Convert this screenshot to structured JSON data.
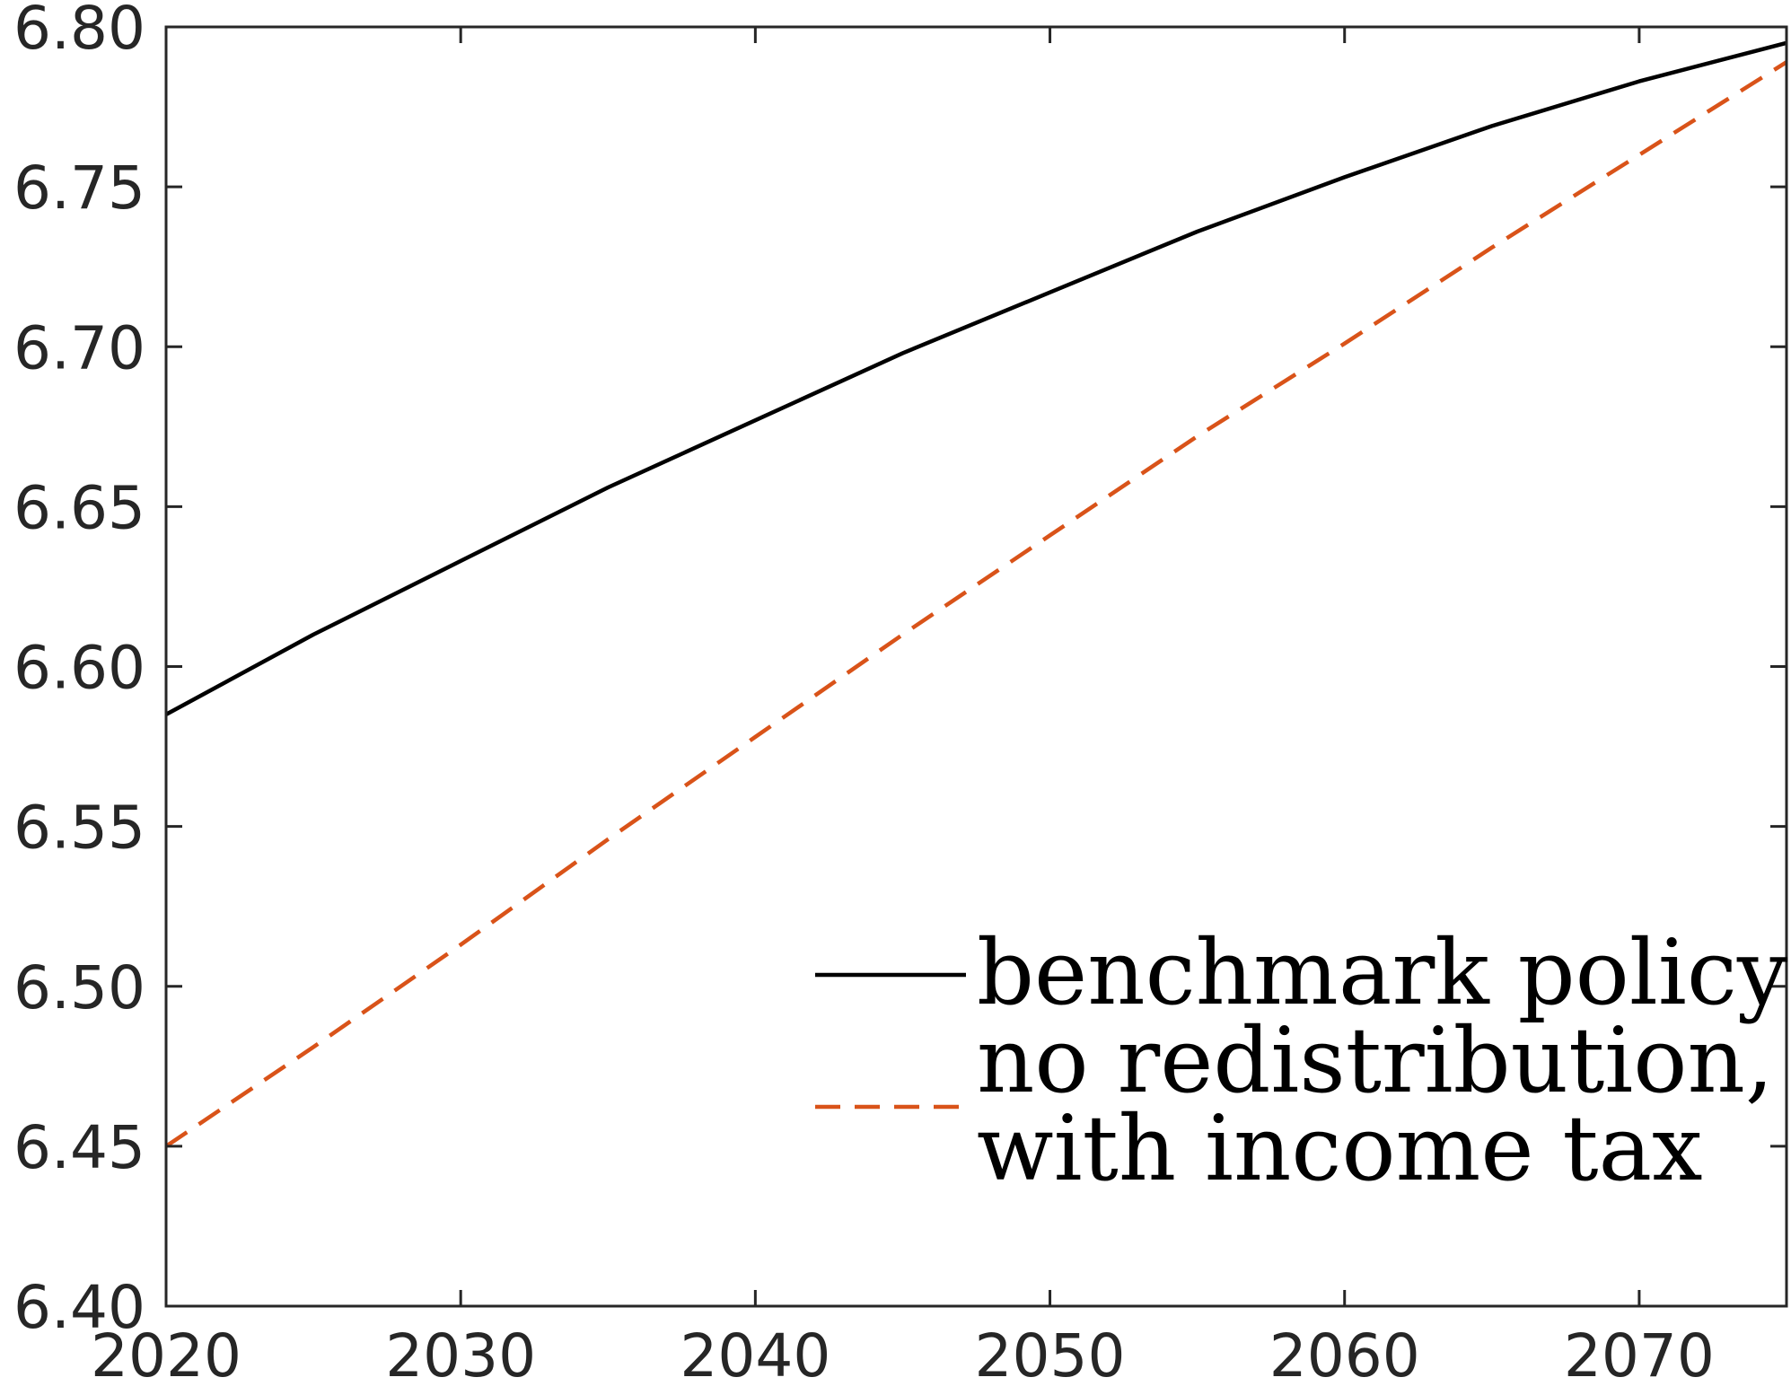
{
  "chart_data": {
    "type": "line",
    "title": "",
    "xlabel": "",
    "ylabel": "",
    "xlim": [
      2020,
      2075
    ],
    "ylim": [
      6.4,
      6.8
    ],
    "x_ticks": [
      2020,
      2030,
      2040,
      2050,
      2060,
      2070
    ],
    "x_tick_labels": [
      "2020",
      "2030",
      "2040",
      "2050",
      "2060",
      "2070"
    ],
    "y_ticks": [
      6.4,
      6.45,
      6.5,
      6.55,
      6.6,
      6.65,
      6.7,
      6.75,
      6.8
    ],
    "y_tick_labels": [
      "6.40",
      "6.45",
      "6.50",
      "6.55",
      "6.60",
      "6.65",
      "6.70",
      "6.75",
      "6.80"
    ],
    "grid": false,
    "legend_position": "bottom-right",
    "series": [
      {
        "name": "benchmark policy",
        "legend_lines": [
          "benchmark policy"
        ],
        "color": "#000000",
        "dash": "solid",
        "x": [
          2020,
          2025,
          2030,
          2035,
          2040,
          2045,
          2050,
          2055,
          2060,
          2065,
          2070,
          2075
        ],
        "y": [
          6.585,
          6.61,
          6.633,
          6.656,
          6.677,
          6.698,
          6.717,
          6.736,
          6.753,
          6.769,
          6.783,
          6.795
        ]
      },
      {
        "name": "no redistribution, with income tax",
        "legend_lines": [
          "no redistribution,",
          "with income tax"
        ],
        "color": "#D95319",
        "dash": "dashed",
        "x": [
          2020,
          2025,
          2030,
          2035,
          2040,
          2045,
          2050,
          2055,
          2060,
          2065,
          2070,
          2075
        ],
        "y": [
          6.45,
          6.481,
          6.513,
          6.546,
          6.578,
          6.61,
          6.641,
          6.672,
          6.701,
          6.731,
          6.76,
          6.789
        ]
      }
    ]
  }
}
